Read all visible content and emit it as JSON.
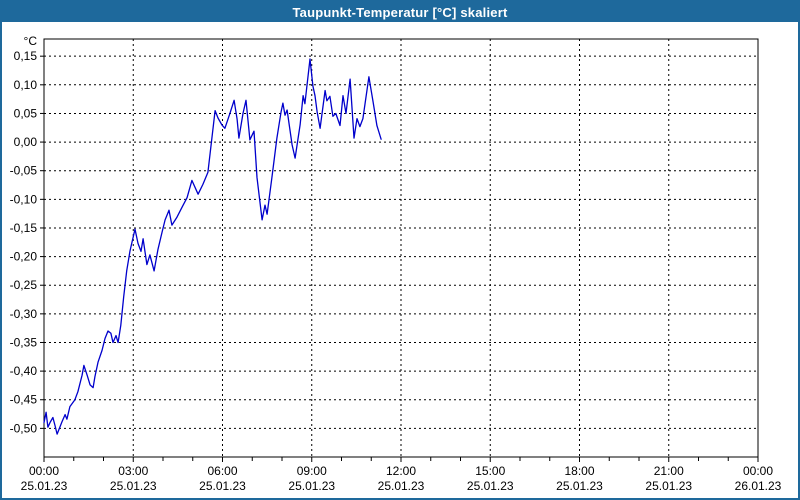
{
  "window": {
    "title": "Taupunkt-Temperatur [°C] skaliert"
  },
  "colors": {
    "titlebar_bg": "#1e699c",
    "window_border": "#1e699c",
    "titlebar_text": "#ffffff",
    "plot_bg": "#ffffff",
    "line": "#0000cc",
    "grid": "#000000",
    "axis": "#000000",
    "label_text": "#000000"
  },
  "chart_data": {
    "type": "line",
    "title": "Taupunkt-Temperatur [°C] skaliert",
    "y_unit_label": "°C",
    "ylabel": "",
    "xlabel": "",
    "ylim": [
      -0.55,
      0.18
    ],
    "x_range_hours": [
      0,
      24
    ],
    "grid": "dashed",
    "legend_position": "none",
    "y_ticks": [
      {
        "value": 0.15,
        "label": "0,15"
      },
      {
        "value": 0.1,
        "label": "0,10"
      },
      {
        "value": 0.05,
        "label": "0,05"
      },
      {
        "value": 0.0,
        "label": "0,00"
      },
      {
        "value": -0.05,
        "label": "-0,05"
      },
      {
        "value": -0.1,
        "label": "-0,10"
      },
      {
        "value": -0.15,
        "label": "-0,15"
      },
      {
        "value": -0.2,
        "label": "-0,20"
      },
      {
        "value": -0.25,
        "label": "-0,25"
      },
      {
        "value": -0.3,
        "label": "-0,30"
      },
      {
        "value": -0.35,
        "label": "-0,35"
      },
      {
        "value": -0.4,
        "label": "-0,40"
      },
      {
        "value": -0.45,
        "label": "-0,45"
      },
      {
        "value": -0.5,
        "label": "-0,50"
      }
    ],
    "x_ticks": [
      {
        "hour": 0,
        "time": "00:00",
        "date": "25.01.23"
      },
      {
        "hour": 3,
        "time": "03:00",
        "date": "25.01.23"
      },
      {
        "hour": 6,
        "time": "06:00",
        "date": "25.01.23"
      },
      {
        "hour": 9,
        "time": "09:00",
        "date": "25.01.23"
      },
      {
        "hour": 12,
        "time": "12:00",
        "date": "25.01.23"
      },
      {
        "hour": 15,
        "time": "15:00",
        "date": "25.01.23"
      },
      {
        "hour": 18,
        "time": "18:00",
        "date": "25.01.23"
      },
      {
        "hour": 21,
        "time": "21:00",
        "date": "25.01.23"
      },
      {
        "hour": 24,
        "time": "00:00",
        "date": "26.01.23"
      }
    ],
    "minor_x_tick_every_hours": 1,
    "series": [
      {
        "name": "Taupunkt-Temperatur skaliert",
        "points": [
          [
            0.0,
            -0.49
          ],
          [
            0.07,
            -0.472
          ],
          [
            0.13,
            -0.498
          ],
          [
            0.2,
            -0.49
          ],
          [
            0.3,
            -0.481
          ],
          [
            0.37,
            -0.495
          ],
          [
            0.44,
            -0.51
          ],
          [
            0.61,
            -0.488
          ],
          [
            0.71,
            -0.476
          ],
          [
            0.77,
            -0.484
          ],
          [
            0.87,
            -0.462
          ],
          [
            1.04,
            -0.45
          ],
          [
            1.14,
            -0.436
          ],
          [
            1.28,
            -0.407
          ],
          [
            1.34,
            -0.39
          ],
          [
            1.45,
            -0.407
          ],
          [
            1.55,
            -0.424
          ],
          [
            1.65,
            -0.429
          ],
          [
            1.71,
            -0.41
          ],
          [
            1.82,
            -0.384
          ],
          [
            1.95,
            -0.364
          ],
          [
            2.05,
            -0.343
          ],
          [
            2.15,
            -0.33
          ],
          [
            2.25,
            -0.334
          ],
          [
            2.32,
            -0.35
          ],
          [
            2.42,
            -0.338
          ],
          [
            2.49,
            -0.35
          ],
          [
            2.58,
            -0.32
          ],
          [
            2.68,
            -0.27
          ],
          [
            2.78,
            -0.225
          ],
          [
            2.89,
            -0.19
          ],
          [
            3.06,
            -0.152
          ],
          [
            3.16,
            -0.177
          ],
          [
            3.26,
            -0.191
          ],
          [
            3.33,
            -0.169
          ],
          [
            3.46,
            -0.214
          ],
          [
            3.56,
            -0.197
          ],
          [
            3.7,
            -0.225
          ],
          [
            3.83,
            -0.188
          ],
          [
            3.97,
            -0.157
          ],
          [
            4.07,
            -0.136
          ],
          [
            4.2,
            -0.119
          ],
          [
            4.3,
            -0.145
          ],
          [
            4.47,
            -0.131
          ],
          [
            4.64,
            -0.114
          ],
          [
            4.81,
            -0.097
          ],
          [
            4.97,
            -0.067
          ],
          [
            5.18,
            -0.091
          ],
          [
            5.34,
            -0.074
          ],
          [
            5.51,
            -0.053
          ],
          [
            5.65,
            0.01
          ],
          [
            5.75,
            0.055
          ],
          [
            5.85,
            0.042
          ],
          [
            5.98,
            0.03
          ],
          [
            6.08,
            0.024
          ],
          [
            6.25,
            0.05
          ],
          [
            6.39,
            0.073
          ],
          [
            6.49,
            0.04
          ],
          [
            6.55,
            0.007
          ],
          [
            6.69,
            0.05
          ],
          [
            6.79,
            0.073
          ],
          [
            6.92,
            0.004
          ],
          [
            7.06,
            0.019
          ],
          [
            7.16,
            -0.062
          ],
          [
            7.33,
            -0.136
          ],
          [
            7.43,
            -0.11
          ],
          [
            7.5,
            -0.126
          ],
          [
            7.66,
            -0.062
          ],
          [
            7.73,
            -0.033
          ],
          [
            7.83,
            0.007
          ],
          [
            7.97,
            0.053
          ],
          [
            8.03,
            0.068
          ],
          [
            8.1,
            0.047
          ],
          [
            8.17,
            0.056
          ],
          [
            8.34,
            -0.005
          ],
          [
            8.44,
            -0.028
          ],
          [
            8.61,
            0.03
          ],
          [
            8.71,
            0.081
          ],
          [
            8.77,
            0.067
          ],
          [
            8.94,
            0.145
          ],
          [
            9.04,
            0.098
          ],
          [
            9.11,
            0.081
          ],
          [
            9.18,
            0.053
          ],
          [
            9.28,
            0.024
          ],
          [
            9.45,
            0.09
          ],
          [
            9.51,
            0.072
          ],
          [
            9.61,
            0.08
          ],
          [
            9.71,
            0.045
          ],
          [
            9.81,
            0.05
          ],
          [
            9.95,
            0.029
          ],
          [
            10.05,
            0.081
          ],
          [
            10.15,
            0.05
          ],
          [
            10.29,
            0.11
          ],
          [
            10.42,
            0.007
          ],
          [
            10.52,
            0.041
          ],
          [
            10.62,
            0.027
          ],
          [
            10.72,
            0.041
          ],
          [
            10.92,
            0.114
          ],
          [
            11.06,
            0.071
          ],
          [
            11.19,
            0.029
          ],
          [
            11.33,
            0.005
          ]
        ]
      }
    ]
  }
}
